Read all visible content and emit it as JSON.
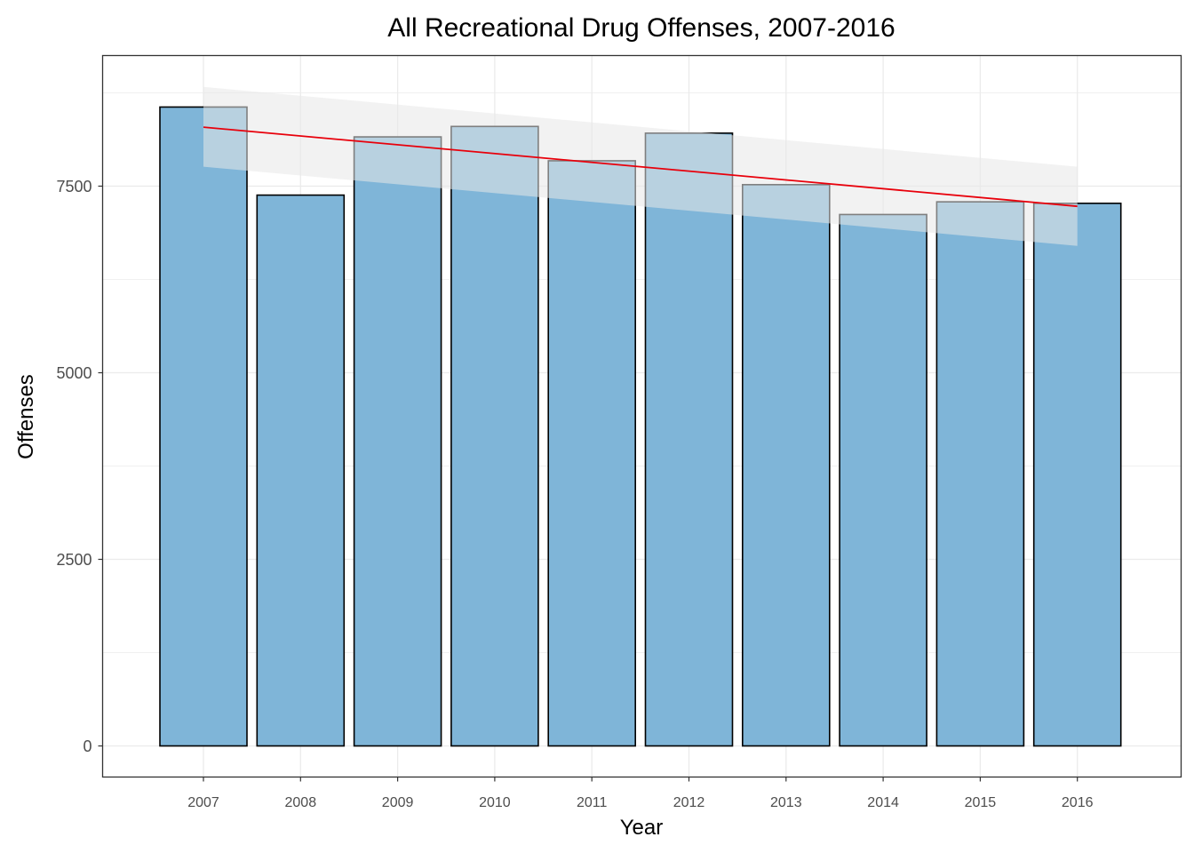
{
  "chart_data": {
    "type": "bar",
    "title": "All Recreational Drug Offenses, 2007-2016",
    "xlabel": "Year",
    "ylabel": "Offenses",
    "categories": [
      "2007",
      "2008",
      "2009",
      "2010",
      "2011",
      "2012",
      "2013",
      "2014",
      "2015",
      "2016"
    ],
    "values": [
      8560,
      7380,
      8160,
      8300,
      7840,
      8210,
      7520,
      7120,
      7290,
      7270
    ],
    "yticks": [
      0,
      2500,
      5000,
      7500
    ],
    "ytick_labels": [
      "0",
      "2500",
      "5000",
      "7500"
    ],
    "ylim": [
      -420,
      9300
    ],
    "grid": true,
    "trend_line": {
      "method": "linear fit with confidence band",
      "start": 8290,
      "end": 7230,
      "ci_start": [
        7760,
        8830
      ],
      "ci_end": [
        6700,
        7760
      ]
    },
    "colors": {
      "bar_fill": "#7fb5d8",
      "bar_stroke": "#000000",
      "trend": "#e8000b",
      "ci_band": "#e8e8e8",
      "grid": "#ebebeb",
      "panel_border": "#333333"
    }
  }
}
